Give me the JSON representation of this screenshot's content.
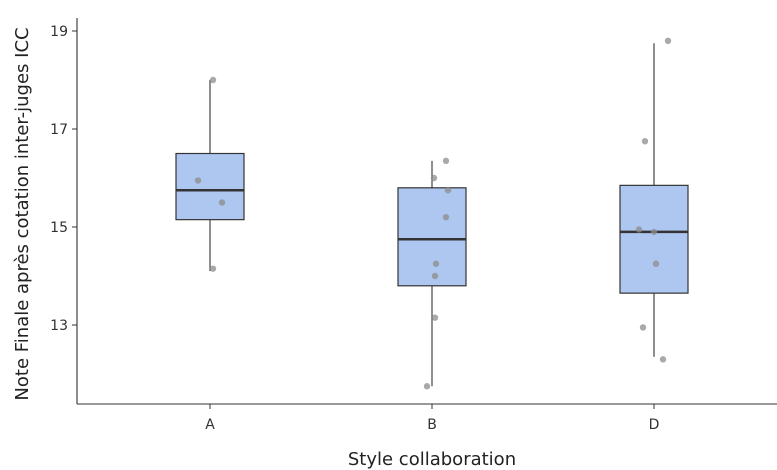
{
  "chart_data": {
    "type": "box",
    "xlabel": "Style collaboration",
    "ylabel": "Note Finale après cotation inter-juges ICC",
    "ylim": [
      11.6,
      19.3
    ],
    "yticks": [
      13,
      15,
      17,
      19
    ],
    "grid": false,
    "box_fill_color": "#aec7f0",
    "line_color": "#333333",
    "point_color": "#8c8c8c",
    "categories": [
      "A",
      "B",
      "D"
    ],
    "boxes": [
      {
        "category": "A",
        "whisker_low": 14.1,
        "q1": 15.15,
        "median": 15.75,
        "q3": 16.5,
        "whisker_high": 18.0
      },
      {
        "category": "B",
        "whisker_low": 11.75,
        "q1": 13.8,
        "median": 14.75,
        "q3": 15.8,
        "whisker_high": 16.35
      },
      {
        "category": "D",
        "whisker_low": 12.35,
        "q1": 13.65,
        "median": 14.9,
        "q3": 15.85,
        "whisker_high": 18.75
      }
    ],
    "points": [
      {
        "category": "A",
        "y": 18.0,
        "jitter": 0.03
      },
      {
        "category": "A",
        "y": 15.95,
        "jitter": -0.12
      },
      {
        "category": "A",
        "y": 15.5,
        "jitter": 0.12
      },
      {
        "category": "A",
        "y": 14.15,
        "jitter": 0.03
      },
      {
        "category": "B",
        "y": 16.35,
        "jitter": 0.14
      },
      {
        "category": "B",
        "y": 16.0,
        "jitter": 0.02
      },
      {
        "category": "B",
        "y": 15.75,
        "jitter": 0.16
      },
      {
        "category": "B",
        "y": 15.2,
        "jitter": 0.14
      },
      {
        "category": "B",
        "y": 14.25,
        "jitter": 0.04
      },
      {
        "category": "B",
        "y": 14.0,
        "jitter": 0.03
      },
      {
        "category": "B",
        "y": 13.15,
        "jitter": 0.03
      },
      {
        "category": "B",
        "y": 11.75,
        "jitter": -0.05
      },
      {
        "category": "D",
        "y": 18.8,
        "jitter": 0.14
      },
      {
        "category": "D",
        "y": 16.75,
        "jitter": -0.09
      },
      {
        "category": "D",
        "y": 14.95,
        "jitter": -0.15
      },
      {
        "category": "D",
        "y": 14.9,
        "jitter": 0.0
      },
      {
        "category": "D",
        "y": 14.25,
        "jitter": 0.02
      },
      {
        "category": "D",
        "y": 12.95,
        "jitter": -0.11
      },
      {
        "category": "D",
        "y": 12.3,
        "jitter": 0.09
      }
    ]
  }
}
